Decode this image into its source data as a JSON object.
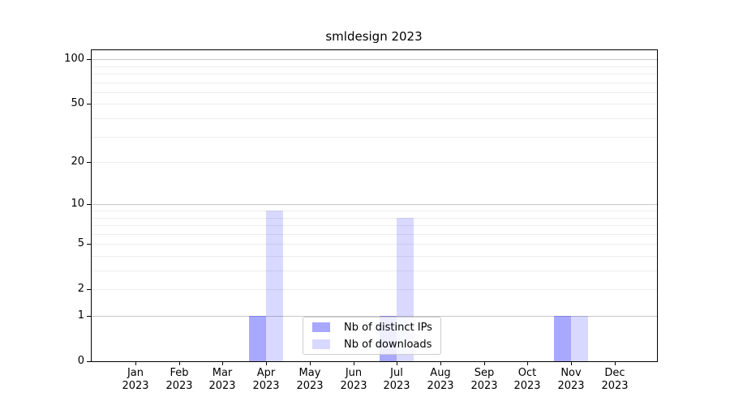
{
  "chart_data": {
    "type": "bar",
    "title": "smldesign 2023",
    "xlabel": "",
    "ylabel": "",
    "categories": [
      "Jan 2023",
      "Feb 2023",
      "Mar 2023",
      "Apr 2023",
      "May 2023",
      "Jun 2023",
      "Jul 2023",
      "Aug 2023",
      "Sep 2023",
      "Oct 2023",
      "Nov 2023",
      "Dec 2023"
    ],
    "series": [
      {
        "name": "Nb of distinct IPs",
        "color": "rgba(0,0,255,0.34)",
        "values": [
          0,
          0,
          0,
          1,
          0,
          0,
          1,
          0,
          0,
          0,
          1,
          0
        ]
      },
      {
        "name": "Nb of downloads",
        "color": "rgba(0,0,255,0.15)",
        "values": [
          0,
          0,
          0,
          9,
          0,
          0,
          8,
          0,
          0,
          0,
          1,
          0
        ]
      }
    ],
    "yscale": "log1p",
    "ylim": [
      0,
      114
    ],
    "grid": true,
    "y_ticks": [
      {
        "label": "0",
        "value": 0
      },
      {
        "label": "1",
        "value": 1
      },
      {
        "label": "2",
        "value": 2
      },
      {
        "label": "5",
        "value": 5
      },
      {
        "label": "10",
        "value": 10
      },
      {
        "label": "20",
        "value": 20
      },
      {
        "label": "50",
        "value": 50
      },
      {
        "label": "100",
        "value": 100
      }
    ],
    "major_gridlines": [
      1,
      10,
      100
    ],
    "minor_gridlines": [
      2,
      3,
      4,
      5,
      6,
      7,
      8,
      9,
      20,
      30,
      40,
      50,
      60,
      70,
      80,
      90
    ],
    "legend_position": "lower center inside"
  },
  "colors": {
    "background": "#ffffff",
    "spine": "#000000",
    "grid_major": "#c6c6c6",
    "grid_minor": "#ededed",
    "bar_distinct_ips": "rgba(0,0,255,0.34)",
    "bar_downloads": "rgba(0,0,255,0.15)",
    "legend_border": "#cccccc",
    "text": "#000000"
  }
}
